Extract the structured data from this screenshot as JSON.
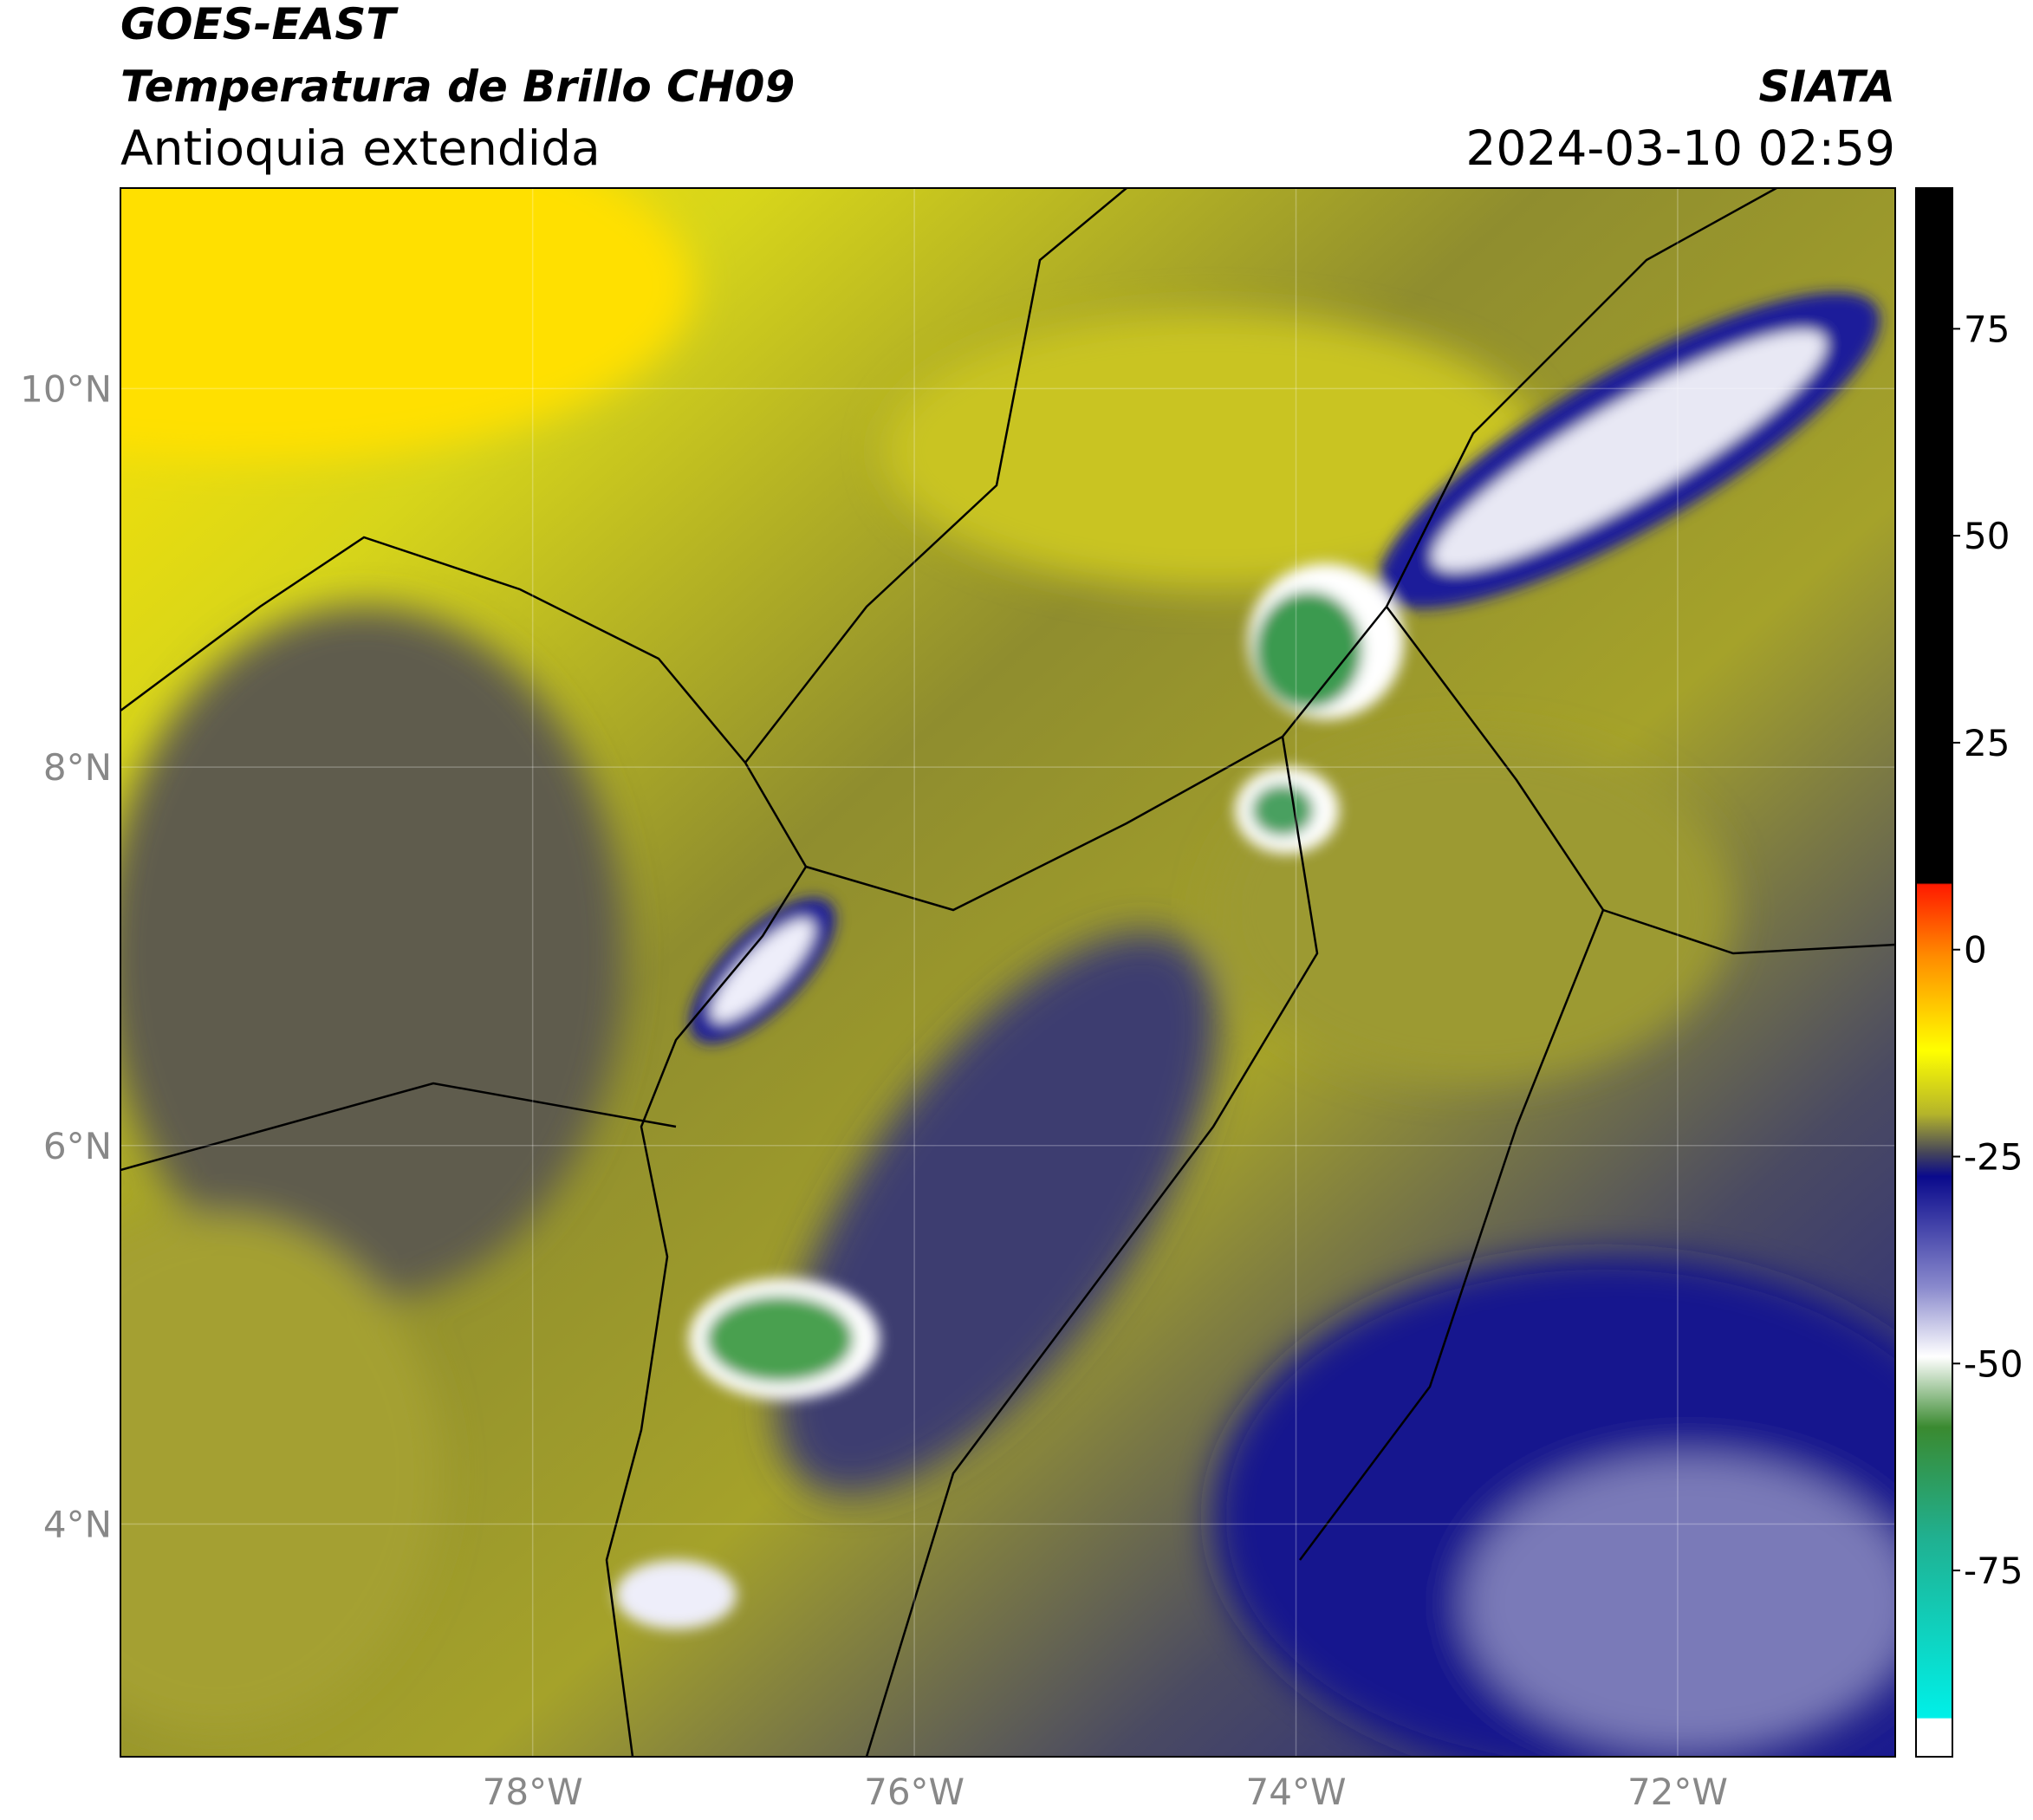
{
  "header": {
    "title": "GOES-EAST",
    "subtitle": "Temperatura de Brillo CH09",
    "region": "Antioquia extendida",
    "source": "SIATA",
    "datetime": "2024-03-10 02:59"
  },
  "map": {
    "xlim": [
      -80.16,
      -70.86
    ],
    "ylim": [
      2.77,
      11.06
    ],
    "grid": true,
    "xticks": [
      {
        "value": -78,
        "label": "78°W"
      },
      {
        "value": -76,
        "label": "76°W"
      },
      {
        "value": -74,
        "label": "74°W"
      },
      {
        "value": -72,
        "label": "72°W"
      }
    ],
    "yticks": [
      {
        "value": 4,
        "label": "4°N"
      },
      {
        "value": 6,
        "label": "6°N"
      },
      {
        "value": 8,
        "label": "8°N"
      },
      {
        "value": 10,
        "label": "10°N"
      }
    ]
  },
  "colorbar": {
    "lim": [
      -97.5,
      92
    ],
    "ticks": [
      -75,
      -50,
      -25,
      0,
      25,
      50,
      75
    ]
  }
}
